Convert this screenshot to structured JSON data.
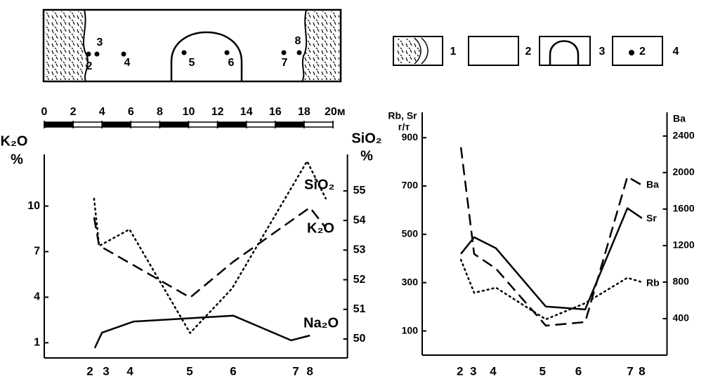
{
  "schematic": {
    "sample_labels": [
      "2",
      "3",
      "4",
      "5",
      "6",
      "7",
      "8"
    ]
  },
  "scale_bar": {
    "ticks": [
      0,
      2,
      4,
      6,
      8,
      10,
      12,
      14,
      16,
      18,
      {
        "value": 20,
        "label": "20м"
      }
    ]
  },
  "legend": {
    "labels": [
      "1",
      "2",
      "3",
      "4"
    ],
    "sample_mark_label": "2"
  },
  "chart_data": [
    {
      "type": "line",
      "ylabel": "K₂O",
      "ylabel_unit": "%",
      "y2label": "SiO₂",
      "y2label_unit": "%",
      "xlim": [
        0,
        21
      ],
      "xticks": [
        {
          "value": 3.16,
          "label": "2"
        },
        {
          "value": 4.28,
          "label": "3"
        },
        {
          "value": 5.94,
          "label": "4"
        },
        {
          "value": 10.07,
          "label": "5"
        },
        {
          "value": 13.09,
          "label": "6"
        },
        {
          "value": 17.42,
          "label": "7"
        },
        {
          "value": 18.4,
          "label": "8"
        }
      ],
      "ylim": [
        0,
        13.4
      ],
      "yticks": [
        1,
        4,
        7,
        10
      ],
      "y2lim": [
        49.36,
        56.23
      ],
      "y2ticks": [
        50,
        51,
        52,
        53,
        54,
        55
      ],
      "series": [
        {
          "name": "SiO₂",
          "color": "#000000",
          "style": "dotted",
          "axis": "y2",
          "x": [
            3.45,
            3.8,
            5.9,
            10.1,
            13.0,
            18.2,
            19.5
          ],
          "values": [
            54.74,
            53.14,
            53.7,
            50.2,
            51.7,
            56.0,
            54.74
          ]
        },
        {
          "name": "K₂O",
          "color": "#000000",
          "style": "dashed",
          "x": [
            3.45,
            3.8,
            10.1,
            13.1,
            18.4,
            19.5
          ],
          "values": [
            9.26,
            7.4,
            3.98,
            6.34,
            9.9,
            8.56
          ]
        },
        {
          "name": "Na₂O",
          "color": "#000000",
          "style": "solid",
          "x": [
            3.5,
            4.0,
            6.2,
            13.1,
            17.1,
            18.4
          ],
          "values": [
            0.65,
            1.67,
            2.4,
            2.78,
            1.16,
            1.48
          ]
        }
      ]
    },
    {
      "type": "line",
      "ylabel": "Rb, Sr",
      "ylabel_unit": "г/т",
      "y2label": "Ba",
      "xlim": [
        0,
        20.5
      ],
      "xticks": [
        {
          "value": 3.16,
          "label": "2"
        },
        {
          "value": 4.28,
          "label": "3"
        },
        {
          "value": 5.94,
          "label": "4"
        },
        {
          "value": 10.07,
          "label": "5"
        },
        {
          "value": 13.09,
          "label": "6"
        },
        {
          "value": 17.42,
          "label": "7"
        },
        {
          "value": 18.4,
          "label": "8"
        }
      ],
      "x": [
        3.24,
        4.35,
        6.18,
        10.35,
        13.65,
        17.18,
        18.4
      ],
      "ylim": [
        0,
        1005
      ],
      "yticks": [
        100,
        300,
        500,
        700,
        900
      ],
      "y2lim": [
        0,
        2660
      ],
      "y2ticks": [
        400,
        800,
        1200,
        1600,
        2000,
        2400
      ],
      "series": [
        {
          "name": "Ba",
          "color": "#000000",
          "style": "dashed",
          "axis": "y2",
          "values": [
            2277,
            1108,
            946,
            323,
            362,
            1954,
            1862
          ]
        },
        {
          "name": "Sr",
          "color": "#000000",
          "style": "solid",
          "values": [
            419,
            488,
            442,
            201,
            189,
            608,
            567
          ]
        },
        {
          "name": "Rb",
          "color": "#000000",
          "style": "dotted",
          "values": [
            395,
            258,
            279,
            148,
            215,
            320,
            302
          ]
        }
      ]
    }
  ]
}
